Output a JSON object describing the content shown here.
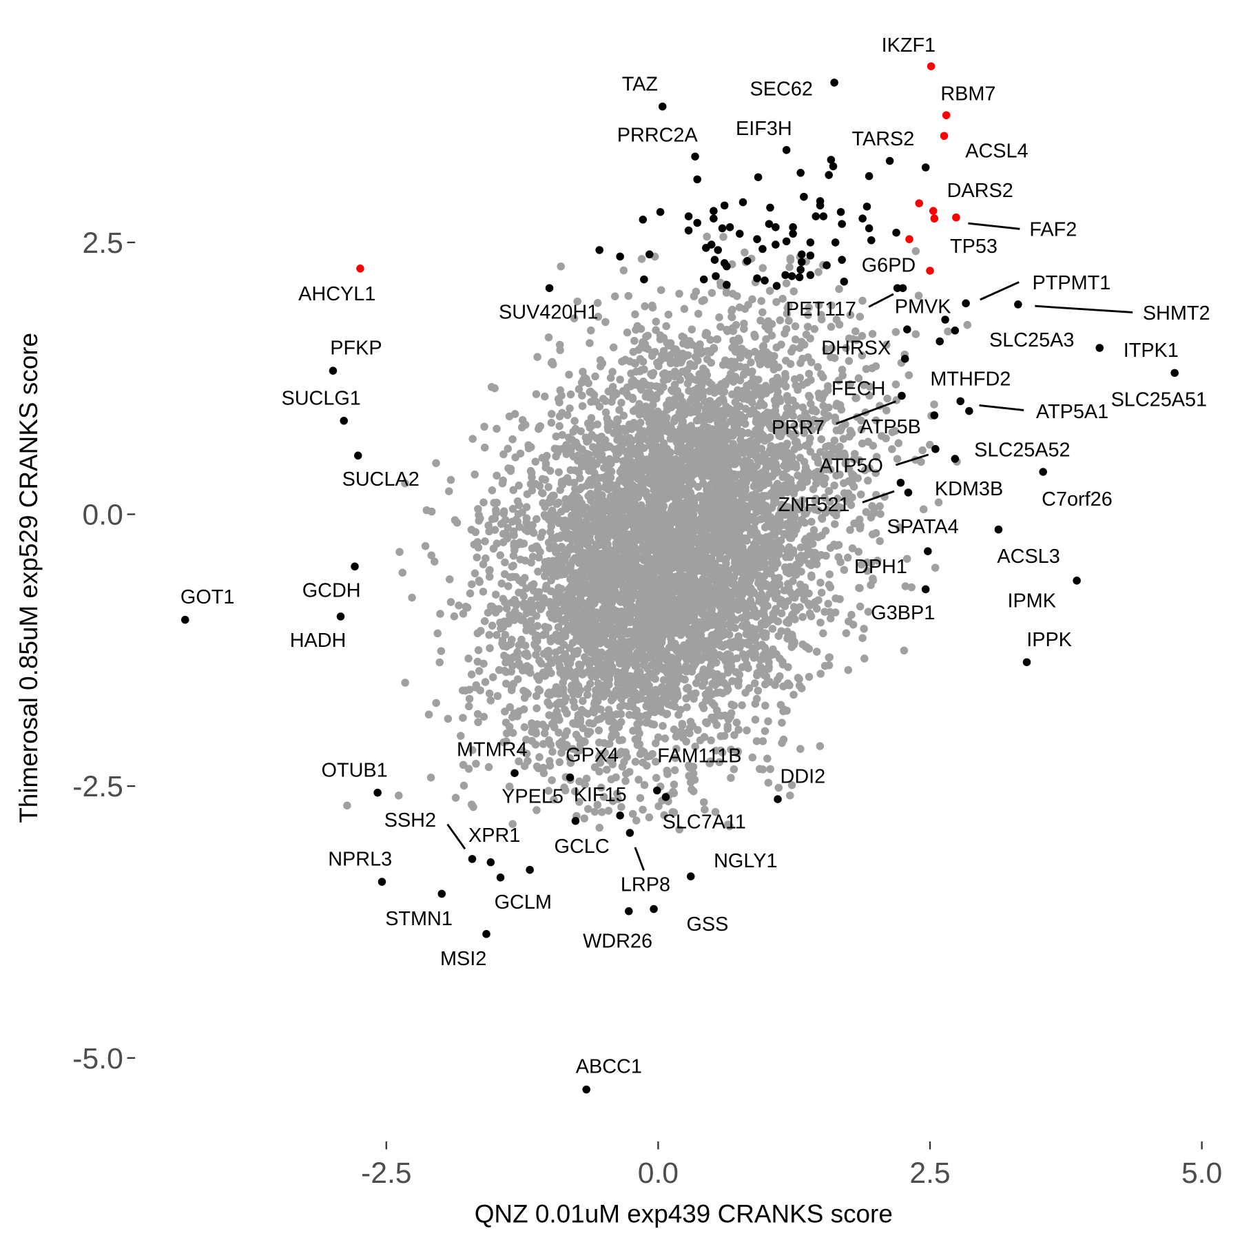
{
  "chart_data": {
    "type": "scatter",
    "xlabel": "QNZ 0.01uM exp439 CRANKS score",
    "ylabel": "Thimerosal 0.85uM exp529 CRANKS score",
    "xlim": [
      -4.7,
      5.0
    ],
    "ylim": [
      -5.6,
      4.5
    ],
    "x_ticks": [
      -2.5,
      0.0,
      2.5,
      5.0
    ],
    "x_tick_labels": [
      "-2.5",
      "0.0",
      "2.5",
      "5.0"
    ],
    "y_ticks": [
      2.5,
      0.0,
      -2.5,
      -5.0
    ],
    "y_tick_labels": [
      "2.5",
      "0.0",
      "-2.5",
      "-5.0"
    ],
    "grid": false,
    "colors": {
      "background_points": "#a0a0a0",
      "hits": "#000000",
      "highlight": "#ff0000",
      "tick_text": "#4d4d4d"
    },
    "background_points": {
      "n": 6000,
      "mean": [
        0.12,
        -0.3
      ],
      "sd": [
        0.78,
        0.98
      ],
      "corr": 0.3,
      "seed": 42
    },
    "highlight_points": [
      [
        2.51,
        4.12
      ],
      [
        2.65,
        3.67
      ],
      [
        2.63,
        3.48
      ],
      [
        2.4,
        2.86
      ],
      [
        2.53,
        2.79
      ],
      [
        2.54,
        2.72
      ],
      [
        2.74,
        2.73
      ],
      [
        2.31,
        2.53
      ],
      [
        2.5,
        2.24
      ],
      [
        -2.74,
        2.26
      ]
    ],
    "hit_points": [
      [
        0.34,
        3.29
      ],
      [
        0.36,
        3.08
      ],
      [
        1.18,
        3.35
      ],
      [
        1.59,
        3.26
      ],
      [
        1.61,
        3.2
      ],
      [
        2.13,
        3.25
      ],
      [
        2.46,
        3.19
      ],
      [
        0.92,
        3.1
      ],
      [
        1.31,
        3.14
      ],
      [
        1.57,
        3.12
      ],
      [
        1.94,
        3.11
      ],
      [
        1.34,
        2.92
      ],
      [
        1.49,
        2.88
      ],
      [
        1.49,
        2.84
      ],
      [
        0.78,
        2.87
      ],
      [
        0.61,
        2.84
      ],
      [
        1.03,
        2.82
      ],
      [
        0.02,
        2.78
      ],
      [
        -0.14,
        2.71
      ],
      [
        0.28,
        2.74
      ],
      [
        0.36,
        2.68
      ],
      [
        0.28,
        2.61
      ],
      [
        0.51,
        2.79
      ],
      [
        0.51,
        2.72
      ],
      [
        0.59,
        2.63
      ],
      [
        0.66,
        2.64
      ],
      [
        0.75,
        2.58
      ],
      [
        0.91,
        2.53
      ],
      [
        1.02,
        2.67
      ],
      [
        1.08,
        2.64
      ],
      [
        1.24,
        2.64
      ],
      [
        1.24,
        2.58
      ],
      [
        1.18,
        2.51
      ],
      [
        1.08,
        2.48
      ],
      [
        0.96,
        2.44
      ],
      [
        1.4,
        2.5
      ],
      [
        1.45,
        2.74
      ],
      [
        1.52,
        2.74
      ],
      [
        1.68,
        2.78
      ],
      [
        1.69,
        2.67
      ],
      [
        1.92,
        2.83
      ],
      [
        1.88,
        2.72
      ],
      [
        1.94,
        2.63
      ],
      [
        1.96,
        2.52
      ],
      [
        2.19,
        2.59
      ],
      [
        1.63,
        2.5
      ],
      [
        0.44,
        2.45
      ],
      [
        0.49,
        2.48
      ],
      [
        0.55,
        2.43
      ],
      [
        0.52,
        2.34
      ],
      [
        0.61,
        2.31
      ],
      [
        0.63,
        2.28
      ],
      [
        0.82,
        2.33
      ],
      [
        1.32,
        2.39
      ],
      [
        1.4,
        2.38
      ],
      [
        1.32,
        2.32
      ],
      [
        1.31,
        2.25
      ],
      [
        1.17,
        2.2
      ],
      [
        1.23,
        2.19
      ],
      [
        1.3,
        2.18
      ],
      [
        1.4,
        2.2
      ],
      [
        1.55,
        2.29
      ],
      [
        1.69,
        2.34
      ],
      [
        1.71,
        2.14
      ],
      [
        0.91,
        2.17
      ],
      [
        0.98,
        2.15
      ],
      [
        1.09,
        2.1
      ],
      [
        0.63,
        2.11
      ],
      [
        0.53,
        2.19
      ],
      [
        0.42,
        2.16
      ],
      [
        -0.13,
        2.16
      ],
      [
        -0.08,
        2.39
      ],
      [
        -0.54,
        2.43
      ],
      [
        -0.35,
        2.37
      ],
      [
        2.25,
        2.08
      ],
      [
        1.62,
        3.97
      ],
      [
        0.04,
        3.75
      ],
      [
        2.2,
        2.08
      ],
      [
        2.64,
        1.79
      ],
      [
        2.73,
        1.69
      ],
      [
        2.59,
        1.59
      ],
      [
        2.83,
        1.94
      ],
      [
        3.31,
        1.93
      ],
      [
        4.06,
        1.53
      ],
      [
        4.75,
        1.3
      ],
      [
        2.29,
        1.7
      ],
      [
        2.27,
        1.43
      ],
      [
        2.24,
        1.09
      ],
      [
        2.78,
        1.04
      ],
      [
        2.86,
        0.95
      ],
      [
        2.54,
        0.91
      ],
      [
        2.55,
        0.6
      ],
      [
        2.73,
        0.51
      ],
      [
        3.54,
        0.39
      ],
      [
        2.23,
        0.29
      ],
      [
        2.3,
        0.2
      ],
      [
        3.13,
        -0.14
      ],
      [
        2.48,
        -0.34
      ],
      [
        3.85,
        -0.61
      ],
      [
        2.46,
        -0.69
      ],
      [
        3.39,
        -1.36
      ],
      [
        -1.0,
        2.08
      ],
      [
        -2.99,
        1.32
      ],
      [
        -2.89,
        0.86
      ],
      [
        -2.76,
        0.54
      ],
      [
        -4.35,
        -0.97
      ],
      [
        -2.79,
        -0.48
      ],
      [
        -2.92,
        -0.94
      ],
      [
        -1.32,
        -2.38
      ],
      [
        -0.81,
        -2.42
      ],
      [
        -0.01,
        -2.54
      ],
      [
        0.07,
        -2.6
      ],
      [
        1.1,
        -2.62
      ],
      [
        -2.58,
        -2.56
      ],
      [
        -0.76,
        -2.82
      ],
      [
        -0.35,
        -2.77
      ],
      [
        -0.26,
        -2.93
      ],
      [
        -1.71,
        -3.17
      ],
      [
        -1.54,
        -3.2
      ],
      [
        -1.45,
        -3.34
      ],
      [
        -1.18,
        -3.27
      ],
      [
        -2.54,
        -3.38
      ],
      [
        -1.99,
        -3.49
      ],
      [
        0.3,
        -3.33
      ],
      [
        -0.27,
        -3.65
      ],
      [
        -0.04,
        -3.63
      ],
      [
        -1.58,
        -3.86
      ],
      [
        -0.66,
        -5.29
      ]
    ],
    "labels": [
      "IKZF1",
      "SEC62",
      "TAZ",
      "RBM7",
      "PRRC2A",
      "EIF3H",
      "TARS2",
      "ACSL4",
      "DARS2",
      "FAF2",
      "TP53",
      "G6PD",
      "AHCYL1",
      "SUV420H1",
      "PTPMT1",
      "PET117",
      "PMVK",
      "SHMT2",
      "PFKP",
      "SLC25A3",
      "ITPK1",
      "DHRSX",
      "MTHFD2",
      "FECH",
      "SUCLG1",
      "SLC25A51",
      "ATP5A1",
      "PRR7",
      "ATP5B",
      "SLC25A52",
      "ATP5O",
      "SUCLA2",
      "C7orf26",
      "KDM3B",
      "ZNF521",
      "SPATA4",
      "ACSL3",
      "DPH1",
      "GCDH",
      "GOT1",
      "IPMK",
      "G3BP1",
      "HADH",
      "IPPK",
      "MTMR4",
      "GPX4",
      "FAM111B",
      "DDI2",
      "OTUB1",
      "YPEL5",
      "KIF15",
      "SLC7A11",
      "SSH2",
      "XPR1",
      "GCLC",
      "NPRL3",
      "NGLY1",
      "LRP8",
      "GCLM",
      "STMN1",
      "GSS",
      "WDR26",
      "MSI2",
      "ABCC1"
    ]
  }
}
